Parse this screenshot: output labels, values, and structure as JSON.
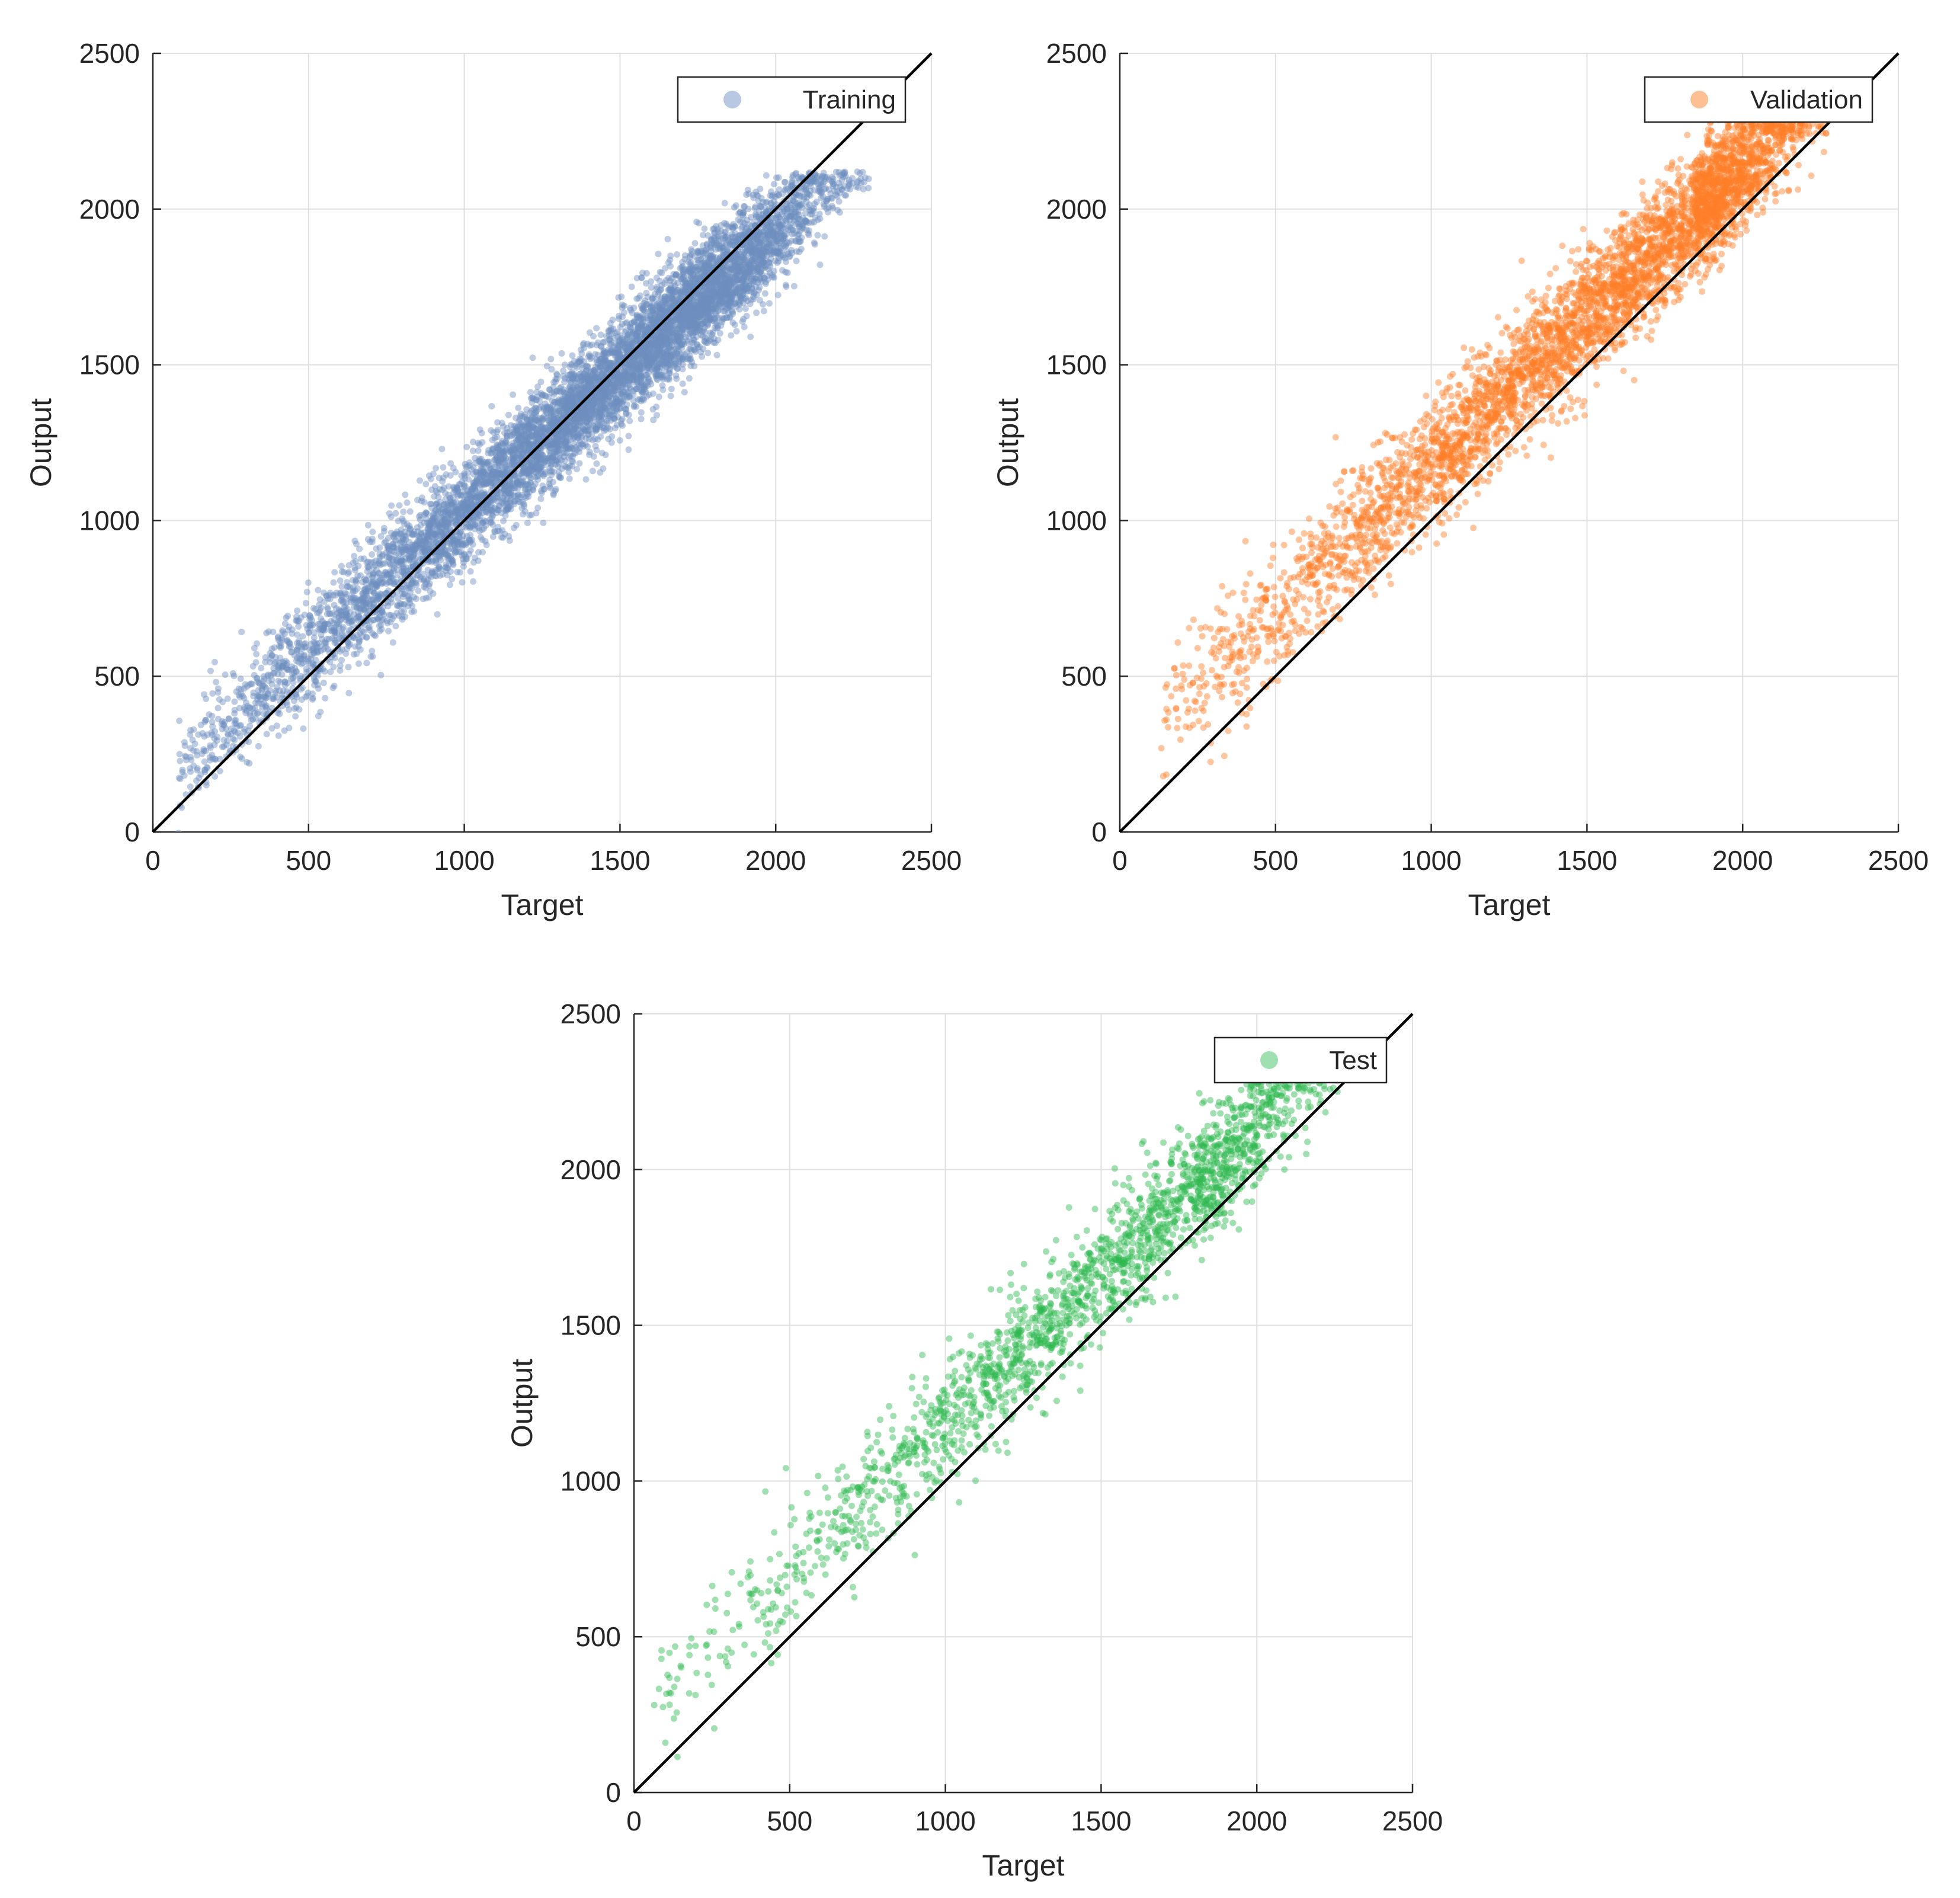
{
  "figure": {
    "background": "#ffffff",
    "grid_color": "#dfdfdf",
    "axis_color": "#262626",
    "identity_line_color": "#000000"
  },
  "chart_data": [
    {
      "type": "scatter",
      "panel": "top-left",
      "xlabel": "Target",
      "ylabel": "Output",
      "xlim": [
        0,
        2500
      ],
      "ylim": [
        0,
        2500
      ],
      "xticks": [
        "0",
        "500",
        "1000",
        "1500",
        "2000",
        "2500"
      ],
      "yticks": [
        "0",
        "500",
        "1000",
        "1500",
        "2000",
        "2500"
      ],
      "grid": true,
      "legend_position": "top-right",
      "reference_line": {
        "x": [
          0,
          2500
        ],
        "y": [
          0,
          2500
        ]
      },
      "series": [
        {
          "name": "Training",
          "color": "#6c8ebf",
          "legend_marker_color": "#b8c8e2",
          "point_count": 7000,
          "x_range": [
            80,
            2300
          ],
          "y_range": [
            300,
            2120
          ],
          "trend": {
            "intercept": 130,
            "slope": 0.9
          },
          "spread": 85,
          "output_max": 2120,
          "density_peak_x": 1700
        }
      ]
    },
    {
      "type": "scatter",
      "panel": "top-right",
      "xlabel": "Target",
      "ylabel": "Output",
      "xlim": [
        0,
        2500
      ],
      "ylim": [
        0,
        2500
      ],
      "xticks": [
        "0",
        "500",
        "1000",
        "1500",
        "2000",
        "2500"
      ],
      "yticks": [
        "0",
        "500",
        "1000",
        "1500",
        "2000",
        "2500"
      ],
      "grid": true,
      "legend_position": "top-right",
      "reference_line": {
        "x": [
          0,
          2500
        ],
        "y": [
          0,
          2500
        ]
      },
      "series": [
        {
          "name": "Validation",
          "color": "#ff7f27",
          "legend_marker_color": "#ffbf94",
          "point_count": 4200,
          "x_range": [
            130,
            2270
          ],
          "y_range": [
            330,
            2300
          ],
          "trend": {
            "intercept": 230,
            "slope": 0.95
          },
          "spread": 100,
          "output_max": 2300,
          "density_peak_x": 1850
        }
      ]
    },
    {
      "type": "scatter",
      "panel": "bottom-center",
      "xlabel": "Target",
      "ylabel": "Output",
      "xlim": [
        0,
        2500
      ],
      "ylim": [
        0,
        2500
      ],
      "xticks": [
        "0",
        "500",
        "1000",
        "1500",
        "2000",
        "2500"
      ],
      "yticks": [
        "0",
        "500",
        "1000",
        "1500",
        "2000",
        "2500"
      ],
      "grid": true,
      "legend_position": "top-right",
      "reference_line": {
        "x": [
          0,
          2500
        ],
        "y": [
          0,
          2500
        ]
      },
      "series": [
        {
          "name": "Test",
          "color": "#2db84d",
          "legend_marker_color": "#9fe0b0",
          "point_count": 1900,
          "x_range": [
            60,
            2270
          ],
          "y_range": [
            330,
            2300
          ],
          "trend": {
            "intercept": 230,
            "slope": 0.95
          },
          "spread": 100,
          "output_max": 2300,
          "density_peak_x": 1800
        }
      ]
    }
  ]
}
